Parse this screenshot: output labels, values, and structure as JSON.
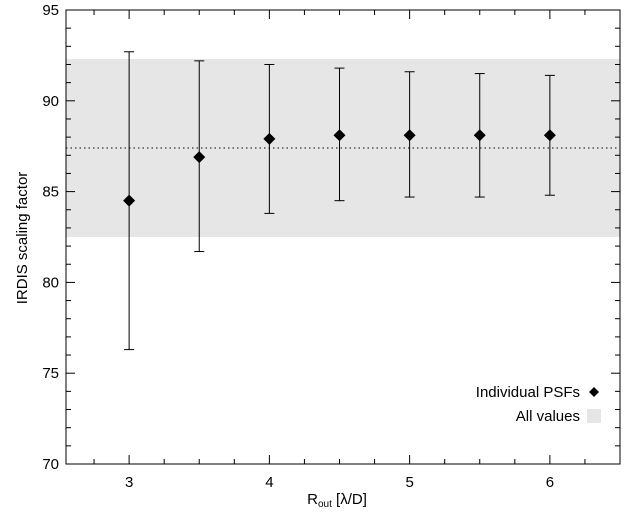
{
  "chart_data": {
    "type": "scatter",
    "title": "",
    "xlabel_main": "R",
    "xlabel_sub": "out",
    "xlabel_rest": " [λ/D]",
    "ylabel": "IRDIS scaling factor",
    "xlim": [
      2.55,
      6.5
    ],
    "ylim": [
      70,
      95
    ],
    "x_ticks": [
      3,
      4,
      5,
      6
    ],
    "x_minor_step": 0.25,
    "y_ticks": [
      70,
      75,
      80,
      85,
      90,
      95
    ],
    "y_minor_step": 1,
    "grid": false,
    "band": {
      "name": "All values",
      "y_low": 82.5,
      "y_high": 92.3,
      "color": "#e6e6e7"
    },
    "reference_line": {
      "y": 87.4,
      "style": "dotted"
    },
    "series": [
      {
        "name": "Individual PSFs",
        "marker": "diamond",
        "x": [
          3.0,
          3.5,
          4.0,
          4.5,
          5.0,
          5.5,
          6.0
        ],
        "y": [
          84.5,
          86.9,
          87.9,
          88.1,
          88.1,
          88.1,
          88.1
        ],
        "y_low": [
          76.3,
          81.7,
          83.8,
          84.5,
          84.7,
          84.7,
          84.8
        ],
        "y_high": [
          92.7,
          92.2,
          92.0,
          91.8,
          91.6,
          91.5,
          91.4
        ]
      }
    ],
    "legend": {
      "position": "bottom-right",
      "entries": [
        "Individual PSFs",
        "All values"
      ]
    }
  }
}
